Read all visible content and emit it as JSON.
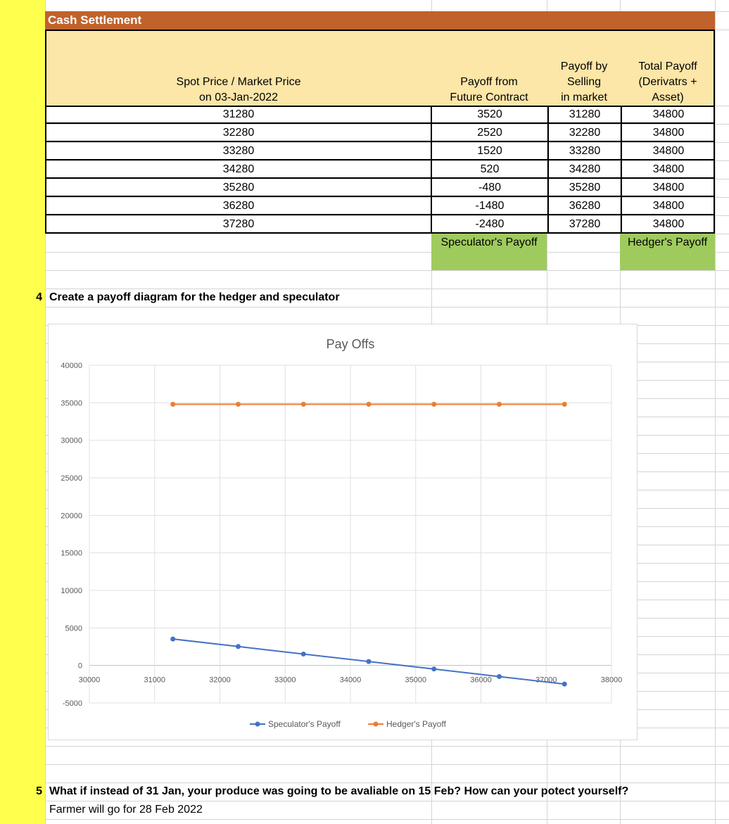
{
  "sheet": {
    "title": "Cash Settlement",
    "headers": {
      "spot": [
        "Spot Price / Market Price",
        "on 03-Jan-2022"
      ],
      "future": [
        "Payoff from",
        "Future Contract"
      ],
      "selling": [
        "Payoff by",
        "Selling",
        "in market"
      ],
      "total": [
        "Total Payoff",
        "(Derivatrs +",
        "Asset)"
      ]
    },
    "rows": [
      {
        "spot": "31280",
        "future": "3520",
        "selling": "31280",
        "total": "34800"
      },
      {
        "spot": "32280",
        "future": "2520",
        "selling": "32280",
        "total": "34800"
      },
      {
        "spot": "33280",
        "future": "1520",
        "selling": "33280",
        "total": "34800"
      },
      {
        "spot": "34280",
        "future": "520",
        "selling": "34280",
        "total": "34800"
      },
      {
        "spot": "35280",
        "future": "-480",
        "selling": "35280",
        "total": "34800"
      },
      {
        "spot": "36280",
        "future": "-1480",
        "selling": "36280",
        "total": "34800"
      },
      {
        "spot": "37280",
        "future": "-2480",
        "selling": "37280",
        "total": "34800"
      }
    ],
    "speculator_label": "Speculator's Payoff",
    "hedger_label": "Hedger's Payoff",
    "q4": {
      "num": "4",
      "text": "Create a payoff diagram for the hedger and speculator"
    },
    "q5": {
      "num": "5",
      "text": "What if instead of 31 Jan, your produce was going to be avaliable on 15 Feb? How can your potect yourself?",
      "answer": "Farmer will go for 28 Feb 2022"
    }
  },
  "chart_data": {
    "type": "scatter",
    "title": "Pay Offs",
    "xlabel": "",
    "ylabel": "",
    "xlim": [
      30000,
      38000
    ],
    "ylim": [
      -5000,
      40000
    ],
    "x_ticks": [
      "30000",
      "31000",
      "32000",
      "33000",
      "34000",
      "35000",
      "36000",
      "37000",
      "38000"
    ],
    "y_ticks": [
      "40000",
      "35000",
      "30000",
      "25000",
      "20000",
      "15000",
      "10000",
      "5000",
      "0",
      "-5000"
    ],
    "grid": true,
    "legend": "bottom",
    "series": [
      {
        "name": "Speculator's Payoff",
        "color": "#4472c4",
        "x": [
          31280,
          32280,
          33280,
          34280,
          35280,
          36280,
          37280
        ],
        "y": [
          3520,
          2520,
          1520,
          520,
          -480,
          -1480,
          -2480
        ]
      },
      {
        "name": "Hedger's Payoff",
        "color": "#ed7d31",
        "x": [
          31280,
          32280,
          33280,
          34280,
          35280,
          36280,
          37280
        ],
        "y": [
          34800,
          34800,
          34800,
          34800,
          34800,
          34800,
          34800
        ]
      }
    ]
  }
}
